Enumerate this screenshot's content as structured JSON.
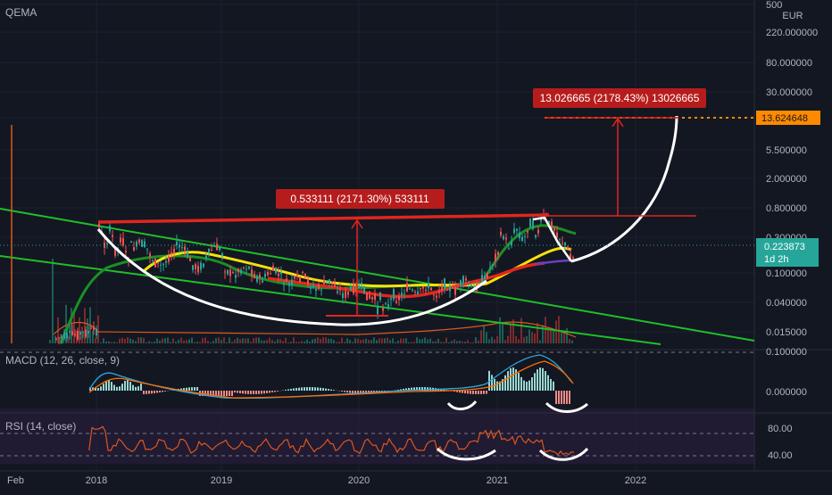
{
  "symbol": "QEMA",
  "currency": "EUR",
  "timeframe_badge": "1d 2h",
  "colors": {
    "background": "#131722",
    "grid": "#1e2230",
    "axis_text": "#b2b5be",
    "red": "#e0261f",
    "green": "#1fbf2a",
    "yellow": "#f5e20c",
    "white": "#ffffff",
    "orange": "#ff8a00",
    "teal": "#26a69a",
    "candle_up": "#26a69a",
    "candle_down": "#ef5350",
    "macd_line": "#2aa8e0",
    "signal_line": "#ff6d00",
    "rsi_line": "#d9581f",
    "rsi_band": "#2a1f3d",
    "price_badge": "#26a69a",
    "target_badge": "#ff8a00"
  },
  "price_axis": {
    "ticks": [
      "500",
      "220.000000",
      "80.000000",
      "30.000000",
      "13.624648",
      "5.500000",
      "2.000000",
      "0.800000",
      "0.300000",
      "0.223873",
      "0.100000",
      "0.040000",
      "0.015000"
    ],
    "current_price": "0.223873",
    "target_price": "13.624648"
  },
  "macd_axis": {
    "ticks": [
      "0.100000",
      "0.000000"
    ]
  },
  "rsi_axis": {
    "ticks": [
      "80.00",
      "40.00"
    ]
  },
  "time_axis": {
    "labels": [
      "Feb",
      "2018",
      "2019",
      "2020",
      "2021",
      "2022"
    ]
  },
  "annotations": {
    "rise_1": "0.533111 (2171.30%) 533111",
    "rise_2": "13.026665 (2178.43%) 13026665"
  },
  "panes": {
    "macd_label": "MACD (12, 26, close, 9)",
    "rsi_label": "RSI (14, close)"
  },
  "chart_data": {
    "type": "line",
    "x_axis": "time",
    "y_scale": "log",
    "ylim": [
      0.01,
      500
    ],
    "grid": true,
    "price_series": {
      "name": "QEMA",
      "x": [
        "2018-01",
        "2018-03",
        "2018-06",
        "2018-09",
        "2019-01",
        "2019-04",
        "2019-07",
        "2019-10",
        "2020-01",
        "2020-04",
        "2020-07",
        "2020-10",
        "2021-01",
        "2021-03",
        "2021-05",
        "2021-07"
      ],
      "y": [
        0.45,
        0.22,
        0.3,
        0.2,
        0.16,
        0.14,
        0.1,
        0.08,
        0.06,
        0.08,
        0.09,
        0.1,
        0.12,
        0.5,
        0.7,
        0.22
      ]
    },
    "macd": {
      "ylim": [
        -0.05,
        0.12
      ],
      "reference_lines": [
        0.1,
        0.0
      ]
    },
    "rsi": {
      "ylim": [
        20,
        100
      ],
      "reference_lines": [
        80,
        40
      ]
    }
  }
}
